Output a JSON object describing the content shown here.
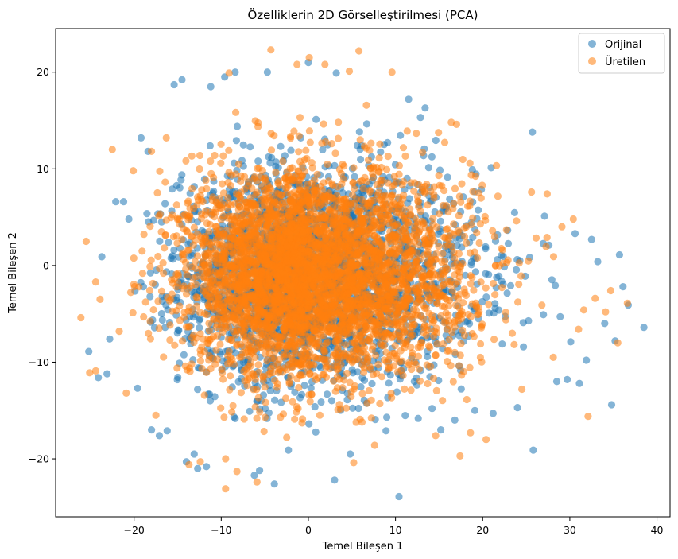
{
  "chart_data": {
    "type": "scatter",
    "title": "Özelliklerin 2D Görselleştirilmesi (PCA)",
    "xlabel": "Temel Bileşen 1",
    "ylabel": "Temel Bileşen 2",
    "xlim": [
      -29,
      41.5
    ],
    "ylim": [
      -26,
      24.5
    ],
    "xticks": [
      -20,
      -10,
      0,
      10,
      20,
      30,
      40
    ],
    "yticks": [
      -20,
      -10,
      0,
      10,
      20
    ],
    "xtick_labels": [
      "−20",
      "−10",
      "0",
      "10",
      "20",
      "30",
      "40"
    ],
    "ytick_labels": [
      "−20",
      "−10",
      "0",
      "10",
      "20"
    ],
    "grid": false,
    "legend_position": "top-right",
    "series": [
      {
        "name": "Orijinal",
        "color": "#1f77b4",
        "opacity": 0.55,
        "points": [
          [
            -25.2,
            -8.9
          ],
          [
            -24.1,
            -11.6
          ],
          [
            -23.7,
            0.9
          ],
          [
            -23.1,
            -11.2
          ],
          [
            -22.8,
            -7.6
          ],
          [
            -22.1,
            6.6
          ],
          [
            -21.2,
            6.6
          ],
          [
            -20.6,
            4.8
          ],
          [
            -19.6,
            -12.7
          ],
          [
            -19.2,
            13.2
          ],
          [
            -18.4,
            11.8
          ],
          [
            -18.0,
            -17.0
          ],
          [
            -17.1,
            -17.6
          ],
          [
            -16.2,
            -17.1
          ],
          [
            -15.4,
            18.7
          ],
          [
            -14.5,
            19.2
          ],
          [
            -14.0,
            -20.3
          ],
          [
            -13.1,
            -19.5
          ],
          [
            -12.7,
            -21.0
          ],
          [
            -11.7,
            -20.8
          ],
          [
            -11.2,
            18.5
          ],
          [
            -9.6,
            19.5
          ],
          [
            -8.4,
            20.0
          ],
          [
            -6.2,
            -21.7
          ],
          [
            -5.6,
            -21.2
          ],
          [
            -4.7,
            20.0
          ],
          [
            -3.9,
            -22.6
          ],
          [
            -2.3,
            -19.1
          ],
          [
            0.0,
            21.0
          ],
          [
            3.0,
            -22.2
          ],
          [
            3.2,
            19.9
          ],
          [
            4.8,
            -19.5
          ],
          [
            10.4,
            -23.9
          ],
          [
            11.5,
            17.2
          ],
          [
            13.4,
            16.3
          ],
          [
            15.2,
            -17.0
          ],
          [
            16.8,
            -16.0
          ],
          [
            19.1,
            -15.0
          ],
          [
            21.2,
            -15.3
          ],
          [
            24.0,
            -14.7
          ],
          [
            25.8,
            -19.1
          ],
          [
            25.7,
            13.8
          ],
          [
            27.1,
            5.1
          ],
          [
            28.5,
            -12.0
          ],
          [
            29.7,
            -11.8
          ],
          [
            31.1,
            -12.2
          ],
          [
            32.5,
            2.7
          ],
          [
            34.0,
            -6.0
          ],
          [
            34.8,
            -14.4
          ],
          [
            35.2,
            -7.8
          ],
          [
            35.7,
            1.1
          ],
          [
            36.1,
            -2.2
          ],
          [
            36.7,
            -4.1
          ],
          [
            38.5,
            -6.4
          ],
          [
            33.2,
            0.4
          ],
          [
            30.6,
            3.3
          ],
          [
            27.6,
            2.1
          ],
          [
            28.9,
            -5.3
          ],
          [
            31.9,
            -9.8
          ],
          [
            30.1,
            -7.9
          ]
        ]
      },
      {
        "name": "Üretilen",
        "color": "#ff7f0e",
        "opacity": 0.55,
        "points": [
          [
            -26.1,
            -5.4
          ],
          [
            -25.5,
            2.5
          ],
          [
            -25.1,
            -11.1
          ],
          [
            -24.4,
            -10.9
          ],
          [
            -23.9,
            -3.5
          ],
          [
            -22.5,
            12.0
          ],
          [
            -21.7,
            -6.8
          ],
          [
            -20.9,
            -13.2
          ],
          [
            -18.0,
            11.8
          ],
          [
            -17.5,
            -15.5
          ],
          [
            -13.7,
            -20.6
          ],
          [
            -12.4,
            -20.3
          ],
          [
            -9.1,
            19.9
          ],
          [
            -9.5,
            -20.0
          ],
          [
            -8.2,
            -21.3
          ],
          [
            -9.5,
            -23.1
          ],
          [
            -5.9,
            -22.4
          ],
          [
            -4.3,
            22.3
          ],
          [
            -1.3,
            20.8
          ],
          [
            1.9,
            20.8
          ],
          [
            0.1,
            21.5
          ],
          [
            4.7,
            20.1
          ],
          [
            5.2,
            -20.4
          ],
          [
            7.6,
            -18.6
          ],
          [
            9.6,
            20.0
          ],
          [
            14.6,
            -17.6
          ],
          [
            16.4,
            14.8
          ],
          [
            17.4,
            -19.7
          ],
          [
            18.6,
            -17.3
          ],
          [
            20.4,
            -18.0
          ],
          [
            25.6,
            7.6
          ],
          [
            27.4,
            7.4
          ],
          [
            29.1,
            4.0
          ],
          [
            30.4,
            4.8
          ],
          [
            31.6,
            -4.6
          ],
          [
            32.1,
            -15.6
          ],
          [
            32.9,
            -3.4
          ],
          [
            34.1,
            -4.8
          ],
          [
            34.7,
            -2.6
          ],
          [
            35.5,
            -8.0
          ],
          [
            36.6,
            -3.9
          ],
          [
            24.5,
            -12.8
          ],
          [
            28.1,
            -9.5
          ],
          [
            31.0,
            -6.6
          ],
          [
            -20.1,
            9.8
          ],
          [
            -24.4,
            -1.7
          ],
          [
            5.8,
            22.2
          ],
          [
            17.0,
            14.6
          ],
          [
            -16.3,
            13.2
          ],
          [
            26.8,
            -4.1
          ]
        ]
      }
    ],
    "dense_cloud": {
      "center": [
        0,
        -1
      ],
      "x_spread": [
        -21,
        29
      ],
      "y_spread": [
        -18,
        17.5
      ],
      "counts": {
        "Orijinal": 2600,
        "Üretilen": 4200
      }
    }
  }
}
